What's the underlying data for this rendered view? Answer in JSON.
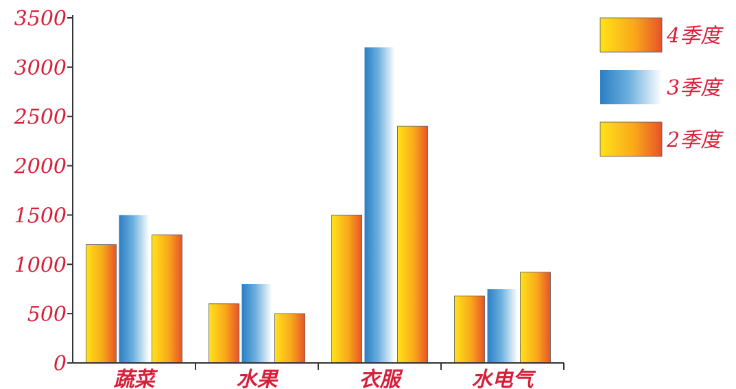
{
  "chart_data": {
    "type": "bar",
    "title": "",
    "xlabel": "",
    "ylabel": "",
    "categories": [
      "蔬菜",
      "水果",
      "衣服",
      "水电气"
    ],
    "series": [
      {
        "name": "4季度",
        "values": [
          1200,
          600,
          1500,
          680
        ],
        "style": "orange"
      },
      {
        "name": "3季度",
        "values": [
          1500,
          800,
          3200,
          750
        ],
        "style": "blue"
      },
      {
        "name": "2季度",
        "values": [
          1300,
          500,
          2400,
          920
        ],
        "style": "orange"
      }
    ],
    "yticks": [
      0,
      500,
      1000,
      1500,
      2000,
      2500,
      3000,
      3500
    ],
    "ylim": [
      0,
      3500
    ],
    "grid": false,
    "legend": "top-right",
    "colors": {
      "label": "#d81f3a",
      "axis": "#333333",
      "orange_start": "#ffe21a",
      "orange_mid": "#f9a81a",
      "orange_end": "#e8532a",
      "blue_start": "#2b7ec4",
      "blue_end": "#ffffff"
    }
  }
}
